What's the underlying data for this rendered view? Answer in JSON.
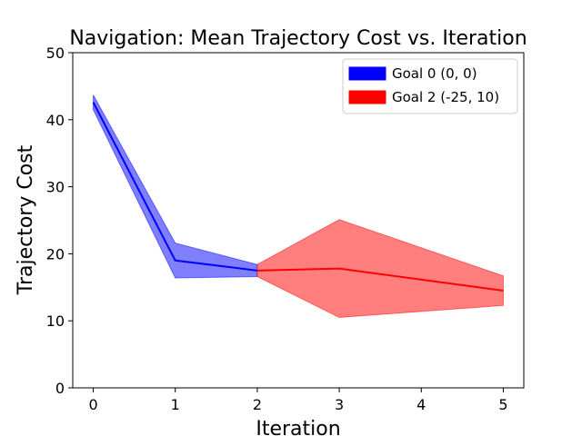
{
  "chart_data": {
    "type": "line",
    "title": "Navigation: Mean Trajectory Cost vs. Iteration",
    "xlabel": "Iteration",
    "ylabel": "Trajectory Cost",
    "xlim": [
      -0.25,
      5.25
    ],
    "ylim": [
      0,
      50
    ],
    "xticks": [
      "0",
      "1",
      "2",
      "3",
      "4",
      "5"
    ],
    "yticks": [
      "0",
      "10",
      "20",
      "30",
      "40",
      "50"
    ],
    "grid": false,
    "legend_position": "top-right",
    "series": [
      {
        "name": "Goal 0 (0, 0)",
        "color": "#0000ff",
        "band_color": "#0000ff",
        "band_opacity": 0.5,
        "x": [
          0,
          1,
          2
        ],
        "values": [
          42.6,
          19.0,
          17.5
        ],
        "lower": [
          41.5,
          16.4,
          16.6
        ],
        "upper": [
          43.7,
          21.6,
          18.4
        ]
      },
      {
        "name": "Goal 2 (-25, 10)",
        "color": "#ff0000",
        "band_color": "#ff0000",
        "band_opacity": 0.5,
        "x": [
          2,
          3,
          5
        ],
        "values": [
          17.5,
          17.8,
          14.5
        ],
        "lower": [
          16.6,
          10.5,
          12.3
        ],
        "upper": [
          18.4,
          25.1,
          16.7
        ]
      }
    ]
  }
}
